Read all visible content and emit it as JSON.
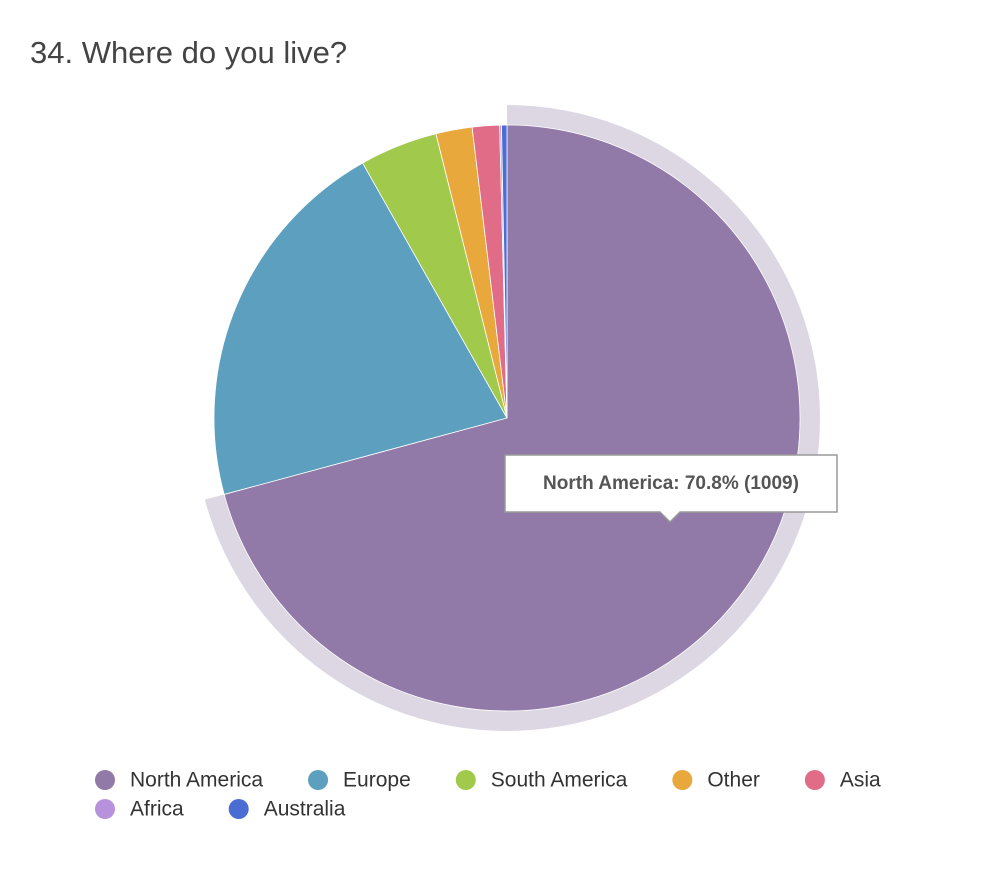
{
  "chart_data": {
    "type": "pie",
    "title": "34. Where do you live?",
    "categories": [
      "North America",
      "Europe",
      "South America",
      "Other",
      "Asia",
      "Africa",
      "Australia"
    ],
    "values": [
      70.8,
      21.0,
      4.3,
      2.0,
      1.5,
      0.1,
      0.3
    ],
    "colors": [
      "#917aa7",
      "#5c9fbe",
      "#a1c94b",
      "#e8a83c",
      "#e06c88",
      "#b891dc",
      "#4a6dd4"
    ],
    "tooltip": "North America: 70.8% (1009)"
  }
}
